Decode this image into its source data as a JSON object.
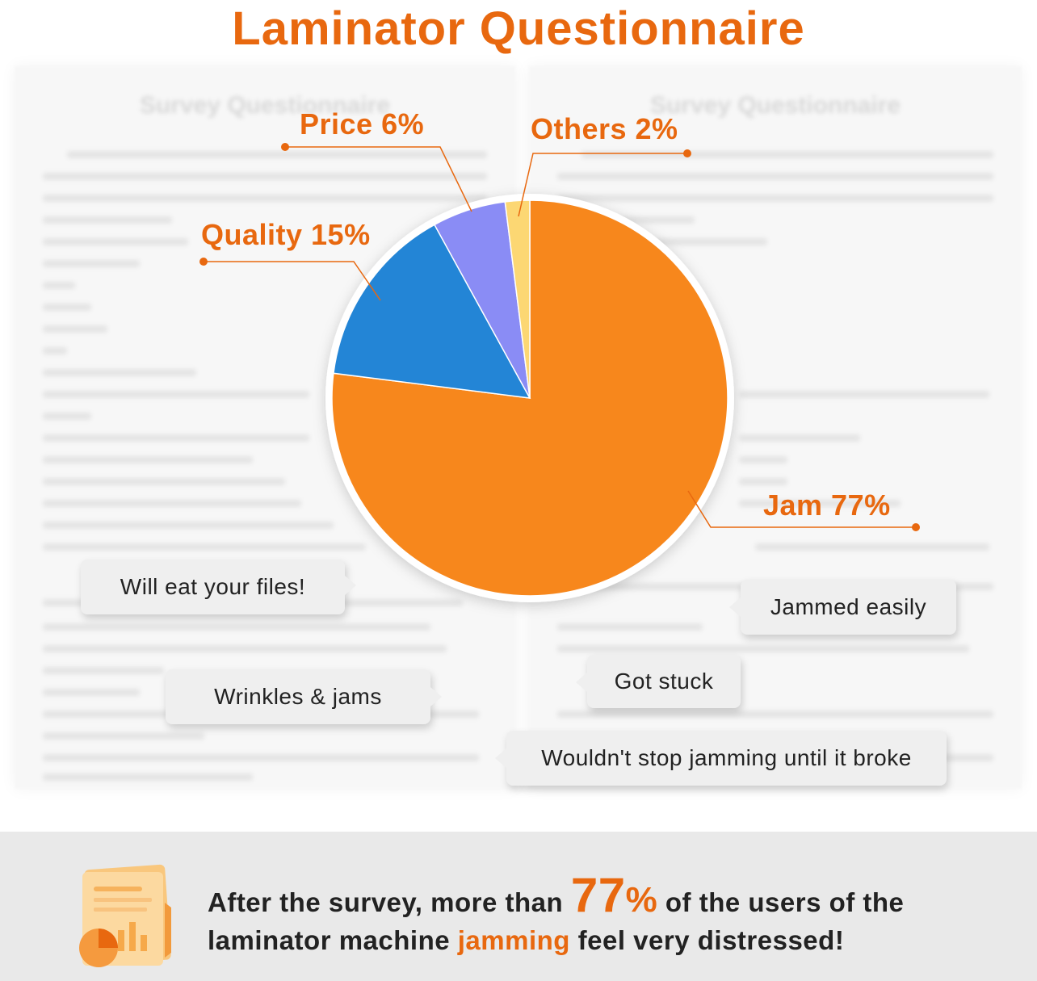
{
  "title": "Laminator Questionnaire",
  "background": {
    "sheet_title": "Survey Questionnaire"
  },
  "chart_data": {
    "type": "pie",
    "slices": [
      {
        "label": "Jam",
        "value": 77,
        "color": "#f7871c",
        "display": "Jam 77%"
      },
      {
        "label": "Quality",
        "value": 15,
        "color": "#2385d6",
        "display": "Quality 15%"
      },
      {
        "label": "Price",
        "value": 6,
        "color": "#8a8cf5",
        "display": "Price 6%"
      },
      {
        "label": "Others",
        "value": 2,
        "color": "#fcd773",
        "display": "Others 2%"
      }
    ]
  },
  "bubbles": {
    "b1": "Will eat your files!",
    "b2": "Jammed easily",
    "b3": "Wrinkles & jams",
    "b4": "Got stuck",
    "b5": "Wouldn't stop jamming until it broke"
  },
  "footer": {
    "part1": "After the survey, more than ",
    "number": "77",
    "percent": "%",
    "part2": " of the users of the laminator machine ",
    "highlight": "jamming",
    "part3": " feel very distressed!",
    "icon": "document-chart-icon"
  },
  "colors": {
    "accent": "#e8680f",
    "footer_bg": "#e9e9e9"
  }
}
